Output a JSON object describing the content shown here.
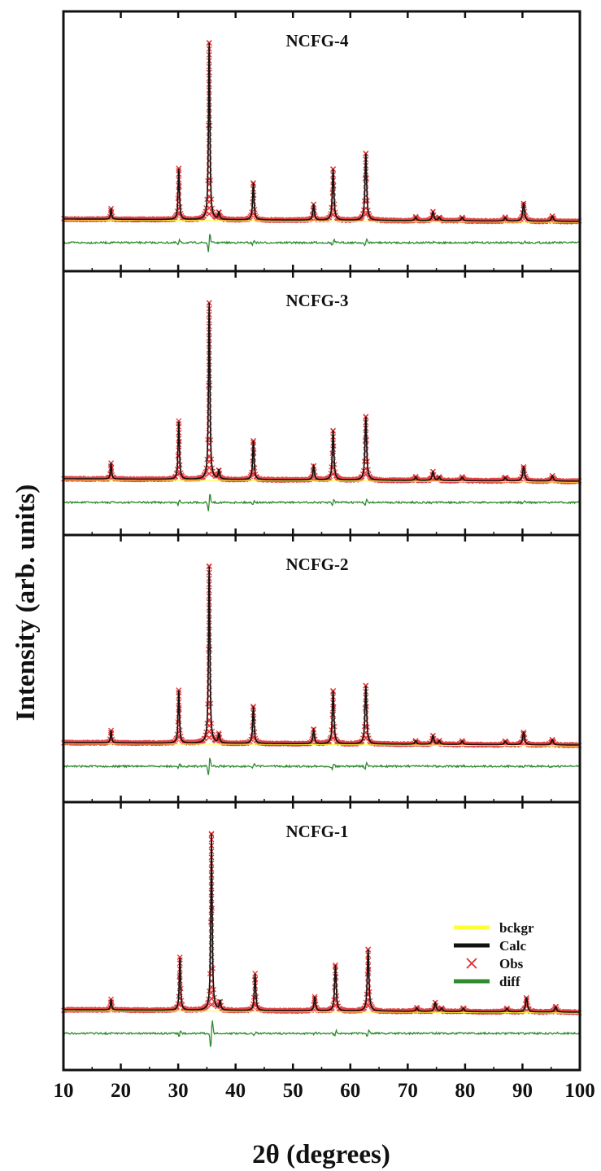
{
  "chart_data": {
    "type": "line",
    "xlabel": "2θ (degrees)",
    "ylabel": "Intensity (arb. units)",
    "xlim": [
      10,
      100
    ],
    "x_ticks": [
      "10",
      "20",
      "30",
      "40",
      "50",
      "60",
      "70",
      "80",
      "90",
      "100"
    ],
    "y_ticks_shown": false,
    "grid": false,
    "colors": {
      "bckgr": "#ffff33",
      "calc": "#111111",
      "obs": "#e03030",
      "diff": "#2e8b2e"
    },
    "legend": {
      "placement": "right (bottom panel)",
      "entries": [
        {
          "label": "bckgr",
          "color": "#ffff33",
          "marker": "line"
        },
        {
          "label": "Calc",
          "color": "#111111",
          "marker": "line"
        },
        {
          "label": "Obs",
          "color": "#e03030",
          "marker": "x"
        },
        {
          "label": "diff",
          "color": "#2e8b2e",
          "marker": "line"
        }
      ]
    },
    "panels": [
      {
        "title": "NCFG-4",
        "peaks": [
          {
            "x": 18.3,
            "y": 0.06
          },
          {
            "x": 30.1,
            "y": 0.29
          },
          {
            "x": 35.4,
            "y": 1.0
          },
          {
            "x": 37.1,
            "y": 0.04
          },
          {
            "x": 43.1,
            "y": 0.21
          },
          {
            "x": 53.6,
            "y": 0.09
          },
          {
            "x": 57.0,
            "y": 0.29
          },
          {
            "x": 62.7,
            "y": 0.38
          },
          {
            "x": 71.4,
            "y": 0.02
          },
          {
            "x": 74.4,
            "y": 0.05
          },
          {
            "x": 75.5,
            "y": 0.02
          },
          {
            "x": 79.5,
            "y": 0.02
          },
          {
            "x": 87.0,
            "y": 0.02
          },
          {
            "x": 90.2,
            "y": 0.1
          },
          {
            "x": 95.2,
            "y": 0.03
          }
        ]
      },
      {
        "title": "NCFG-3",
        "peaks": [
          {
            "x": 18.3,
            "y": 0.09
          },
          {
            "x": 30.1,
            "y": 0.33
          },
          {
            "x": 35.4,
            "y": 1.0
          },
          {
            "x": 37.1,
            "y": 0.05
          },
          {
            "x": 43.1,
            "y": 0.22
          },
          {
            "x": 53.6,
            "y": 0.08
          },
          {
            "x": 57.0,
            "y": 0.28
          },
          {
            "x": 62.7,
            "y": 0.36
          },
          {
            "x": 71.4,
            "y": 0.02
          },
          {
            "x": 74.4,
            "y": 0.05
          },
          {
            "x": 75.5,
            "y": 0.02
          },
          {
            "x": 79.5,
            "y": 0.02
          },
          {
            "x": 87.0,
            "y": 0.02
          },
          {
            "x": 90.2,
            "y": 0.08
          },
          {
            "x": 95.2,
            "y": 0.03
          }
        ]
      },
      {
        "title": "NCFG-2",
        "peaks": [
          {
            "x": 18.3,
            "y": 0.07
          },
          {
            "x": 30.1,
            "y": 0.3
          },
          {
            "x": 35.4,
            "y": 1.0
          },
          {
            "x": 37.1,
            "y": 0.05
          },
          {
            "x": 43.1,
            "y": 0.21
          },
          {
            "x": 53.6,
            "y": 0.08
          },
          {
            "x": 57.0,
            "y": 0.3
          },
          {
            "x": 62.7,
            "y": 0.33
          },
          {
            "x": 71.4,
            "y": 0.02
          },
          {
            "x": 74.4,
            "y": 0.05
          },
          {
            "x": 75.5,
            "y": 0.02
          },
          {
            "x": 79.5,
            "y": 0.02
          },
          {
            "x": 87.0,
            "y": 0.02
          },
          {
            "x": 90.2,
            "y": 0.07
          },
          {
            "x": 95.2,
            "y": 0.03
          }
        ]
      },
      {
        "title": "NCFG-1",
        "peaks": [
          {
            "x": 18.3,
            "y": 0.06
          },
          {
            "x": 30.3,
            "y": 0.3
          },
          {
            "x": 35.8,
            "y": 1.0
          },
          {
            "x": 37.3,
            "y": 0.05
          },
          {
            "x": 43.4,
            "y": 0.21
          },
          {
            "x": 53.8,
            "y": 0.08
          },
          {
            "x": 57.4,
            "y": 0.26
          },
          {
            "x": 63.1,
            "y": 0.35
          },
          {
            "x": 71.6,
            "y": 0.02
          },
          {
            "x": 74.8,
            "y": 0.05
          },
          {
            "x": 75.9,
            "y": 0.02
          },
          {
            "x": 79.7,
            "y": 0.02
          },
          {
            "x": 87.3,
            "y": 0.02
          },
          {
            "x": 90.7,
            "y": 0.08
          },
          {
            "x": 95.8,
            "y": 0.03
          }
        ]
      }
    ]
  }
}
